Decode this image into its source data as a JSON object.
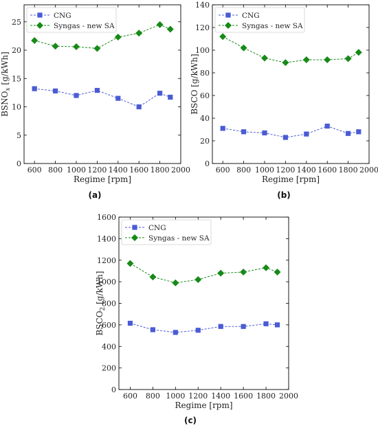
{
  "colors": {
    "cng": "#4a5bd4",
    "syngas": "#178a17"
  },
  "chart_data": [
    {
      "type": "line",
      "caption": "(a)",
      "xlabel": "Regime [rpm]",
      "ylabel_main": "BSNO",
      "ylabel_sub": "x",
      "ylabel_unit": " [g/kWh]",
      "xlim": [
        500,
        2000
      ],
      "ylim": [
        0,
        28
      ],
      "xticks": [
        600,
        800,
        1000,
        1200,
        1400,
        1600,
        1800,
        2000
      ],
      "yticks": [
        0,
        5,
        10,
        15,
        20,
        25
      ],
      "grid": false,
      "legend": "top-left",
      "x": [
        600,
        800,
        1000,
        1200,
        1400,
        1600,
        1800,
        1900
      ],
      "series": [
        {
          "name": "CNG",
          "marker": "square",
          "values": [
            13.2,
            12.8,
            12.0,
            12.9,
            11.5,
            10.0,
            12.4,
            11.7
          ]
        },
        {
          "name": "Syngas - new SA",
          "marker": "diamond",
          "values": [
            21.7,
            20.7,
            20.6,
            20.3,
            22.3,
            23.0,
            24.5,
            23.7
          ]
        }
      ]
    },
    {
      "type": "line",
      "caption": "(b)",
      "xlabel": "Regime [rpm]",
      "ylabel_main": "BSCO",
      "ylabel_sub": "",
      "ylabel_unit": " [g/kWh]",
      "xlim": [
        500,
        2000
      ],
      "ylim": [
        0,
        140
      ],
      "xticks": [
        600,
        800,
        1000,
        1200,
        1400,
        1600,
        1800,
        2000
      ],
      "yticks": [
        0,
        20,
        40,
        60,
        80,
        100,
        120,
        140
      ],
      "grid": false,
      "legend": "top-left",
      "x": [
        600,
        800,
        1000,
        1200,
        1400,
        1600,
        1800,
        1900
      ],
      "series": [
        {
          "name": "CNG",
          "marker": "square",
          "values": [
            31,
            28,
            27,
            23,
            26,
            33,
            26.5,
            28
          ]
        },
        {
          "name": "Syngas - new SA",
          "marker": "diamond",
          "values": [
            112,
            102,
            93,
            89,
            91.5,
            91.5,
            92.5,
            98
          ]
        }
      ]
    },
    {
      "type": "line",
      "caption": "(c)",
      "xlabel": "Regime [rpm]",
      "ylabel_main": "BSCO",
      "ylabel_sub": "2",
      "ylabel_unit": " [g/kWh]",
      "xlim": [
        500,
        2000
      ],
      "ylim": [
        0,
        1600
      ],
      "xticks": [
        600,
        800,
        1000,
        1200,
        1400,
        1600,
        1800,
        2000
      ],
      "yticks": [
        0,
        200,
        400,
        600,
        800,
        1000,
        1200,
        1400,
        1600
      ],
      "grid": false,
      "legend": "top-left",
      "x": [
        600,
        800,
        1000,
        1200,
        1400,
        1600,
        1800,
        1900
      ],
      "series": [
        {
          "name": "CNG",
          "marker": "square",
          "values": [
            615,
            555,
            530,
            550,
            585,
            585,
            610,
            600
          ]
        },
        {
          "name": "Syngas - new SA",
          "marker": "diamond",
          "values": [
            1170,
            1045,
            990,
            1020,
            1080,
            1090,
            1130,
            1090
          ]
        }
      ]
    }
  ]
}
